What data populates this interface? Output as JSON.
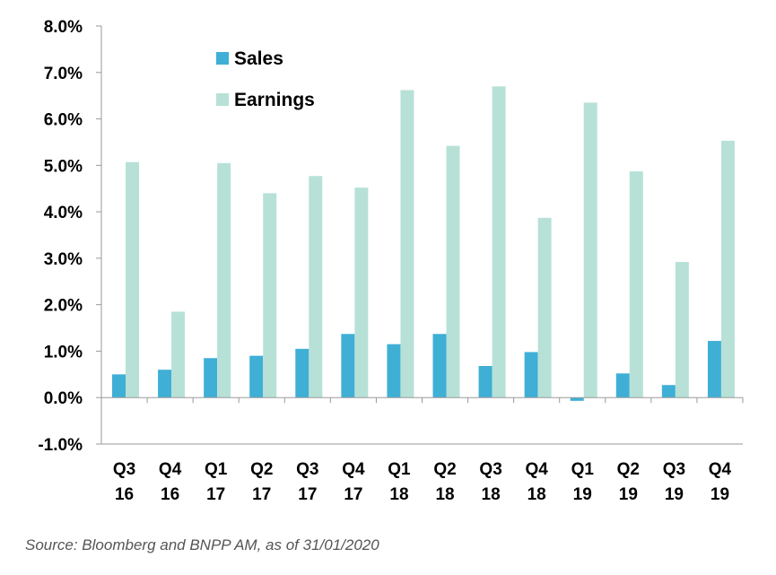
{
  "chart_data": {
    "type": "bar",
    "title": "",
    "xlabel": "",
    "ylabel": "",
    "categories": [
      [
        "Q3",
        "16"
      ],
      [
        "Q4",
        "16"
      ],
      [
        "Q1",
        "17"
      ],
      [
        "Q2",
        "17"
      ],
      [
        "Q3",
        "17"
      ],
      [
        "Q4",
        "17"
      ],
      [
        "Q1",
        "18"
      ],
      [
        "Q2",
        "18"
      ],
      [
        "Q3",
        "18"
      ],
      [
        "Q4",
        "18"
      ],
      [
        "Q1",
        "19"
      ],
      [
        "Q2",
        "19"
      ],
      [
        "Q3",
        "19"
      ],
      [
        "Q4",
        "19"
      ]
    ],
    "series": [
      {
        "name": "Sales",
        "color": "#3fafd6",
        "values": [
          0.5,
          0.6,
          0.85,
          0.9,
          1.05,
          1.37,
          1.15,
          1.37,
          0.68,
          0.98,
          -0.07,
          0.52,
          0.27,
          1.22
        ]
      },
      {
        "name": "Earnings",
        "color": "#b7e1d7",
        "values": [
          5.07,
          1.85,
          5.05,
          4.4,
          4.77,
          4.52,
          6.62,
          5.42,
          6.7,
          3.87,
          6.35,
          4.87,
          2.92,
          5.53
        ]
      }
    ],
    "ylim": [
      -1.0,
      8.0
    ],
    "yticks": [
      "-1.0%",
      "0.0%",
      "1.0%",
      "2.0%",
      "3.0%",
      "4.0%",
      "5.0%",
      "6.0%",
      "7.0%",
      "8.0%"
    ],
    "ytick_values": [
      -1,
      0,
      1,
      2,
      3,
      4,
      5,
      6,
      7,
      8
    ],
    "legend": "top-left",
    "grid": false
  },
  "source_note": "Source: Bloomberg and BNPP AM, as of 31/01/2020"
}
